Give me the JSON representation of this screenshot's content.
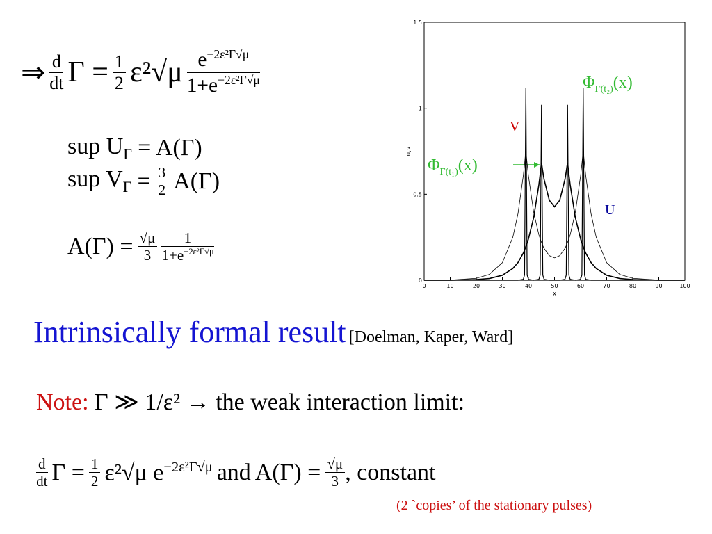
{
  "slide": {
    "eq_rate": {
      "arrow": "⇒",
      "ddt_num": "d",
      "ddt_den": "dt",
      "lhs": "Γ =",
      "half_num": "1",
      "half_den": "2",
      "coef": "ε²√μ",
      "frac_num": "e",
      "frac_num_exp": "−2ε²Γ√μ",
      "frac_den": "1+e",
      "frac_den_exp": "−2ε²Γ√μ"
    },
    "sup_u": {
      "a": "sup U",
      "sub": "Γ",
      "b": "= A(Γ)"
    },
    "sup_v": {
      "a": "sup V",
      "sub": "Γ",
      "b": "=",
      "num": "3",
      "den": "2",
      "c": "A(Γ)"
    },
    "eq_a": {
      "lhs": "A(Γ) =",
      "num1": "√μ",
      "den1": "3",
      "num2": "1",
      "den2": "1+e",
      "den2_exp": "−2ε²Γ√μ"
    },
    "headline": {
      "main": "Intrinsically formal result",
      "cite": "[Doelman, Kaper, Ward]"
    },
    "note": {
      "label": "Note:",
      "text": "Γ ≫ 1/ε² → the weak interaction limit:"
    },
    "eq_limit": {
      "ddt_num": "d",
      "ddt_den": "dt",
      "a": "Γ =",
      "half_num": "1",
      "half_den": "2",
      "b": "ε²√μ e",
      "exp": "−2ε²Γ√μ",
      "and": "and",
      "c": "A(Γ) =",
      "num": "√μ",
      "den": "3",
      "d": ", constant"
    },
    "footnote": "(2 `copies’ of the stationary pulses)"
  },
  "chart_data": {
    "type": "line",
    "xlabel": "x",
    "ylabel": "u,v",
    "xlim": [
      0,
      100
    ],
    "ylim": [
      0,
      1.5
    ],
    "xticks": [
      0,
      10,
      20,
      30,
      40,
      50,
      60,
      70,
      80,
      90,
      100
    ],
    "yticks": [
      0,
      0.5,
      1,
      1.5
    ],
    "x": [
      0,
      10,
      20,
      25,
      30,
      34,
      36,
      38,
      38.5,
      39,
      39.5,
      40,
      42,
      44,
      44.5,
      45,
      45.5,
      46,
      48,
      50,
      52,
      54,
      54.5,
      55,
      55.5,
      56,
      58,
      60,
      60.5,
      61,
      61.5,
      62,
      64,
      66,
      70,
      75,
      80,
      90,
      100
    ],
    "series": [
      {
        "color": "#000000",
        "linewidth": 1.6,
        "values": [
          0,
          0,
          0.004,
          0.01,
          0.029,
          0.068,
          0.103,
          0.157,
          0.175,
          0.195,
          0.216,
          0.24,
          0.364,
          0.555,
          0.616,
          0.684,
          0.632,
          0.586,
          0.465,
          0.427,
          0.465,
          0.586,
          0.632,
          0.684,
          0.616,
          0.555,
          0.364,
          0.24,
          0.216,
          0.195,
          0.175,
          0.157,
          0.103,
          0.068,
          0.029,
          0.01,
          0.004,
          0,
          0
        ]
      },
      {
        "color": "#000000",
        "linewidth": 0.8,
        "values": [
          0,
          0.001,
          0.011,
          0.034,
          0.102,
          0.249,
          0.388,
          0.605,
          0.676,
          0.756,
          0.677,
          0.607,
          0.396,
          0.264,
          0.241,
          0.22,
          0.201,
          0.185,
          0.143,
          0.13,
          0.143,
          0.185,
          0.201,
          0.22,
          0.241,
          0.264,
          0.396,
          0.607,
          0.677,
          0.756,
          0.676,
          0.605,
          0.388,
          0.249,
          0.102,
          0.034,
          0.011,
          0.001,
          0
        ]
      },
      {
        "color": "#000000",
        "linewidth": 1.2,
        "values": [
          0,
          0,
          0,
          0,
          0,
          0,
          0,
          0,
          0,
          0,
          0,
          0,
          0,
          0.005,
          0.03,
          1.02,
          0.03,
          0.005,
          0,
          0,
          0,
          0.005,
          0.03,
          1.02,
          0.03,
          0.005,
          0,
          0,
          0,
          0,
          0,
          0,
          0,
          0,
          0,
          0,
          0,
          0,
          0
        ]
      },
      {
        "color": "#000000",
        "linewidth": 1.2,
        "values": [
          0,
          0,
          0,
          0,
          0,
          0,
          0,
          0.005,
          0.03,
          1.12,
          0.03,
          0.005,
          0,
          0,
          0,
          0,
          0,
          0,
          0,
          0,
          0,
          0,
          0,
          0,
          0,
          0,
          0,
          0.005,
          0.03,
          1.12,
          0.03,
          0.005,
          0,
          0,
          0,
          0,
          0,
          0,
          0
        ]
      }
    ],
    "annotations": [
      {
        "text": "V",
        "color": "#cc0000"
      },
      {
        "text": "U",
        "color": "#000099"
      },
      {
        "main": "Φ",
        "sub": "Γ(t₂)",
        "arg": "(x)",
        "color": "#33bb33"
      },
      {
        "main": "Φ",
        "sub": "Γ(t₁)",
        "arg": "(x)",
        "color": "#33bb33"
      }
    ]
  }
}
